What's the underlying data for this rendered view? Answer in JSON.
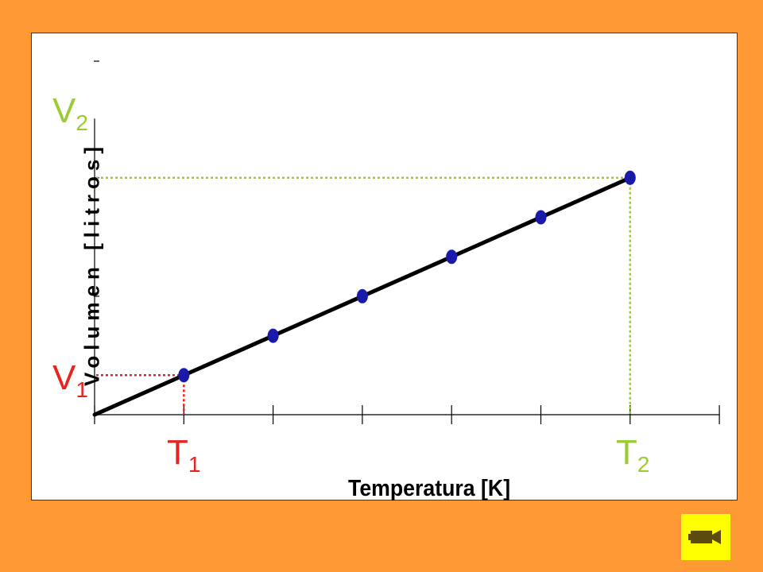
{
  "chart_data": {
    "type": "scatter",
    "xlabel": "Temperatura [K]",
    "ylabel": "Volumen [litros]",
    "x": [
      1,
      2,
      3,
      4,
      5,
      6
    ],
    "y": [
      1,
      2,
      3,
      4,
      5,
      6
    ],
    "xlim": [
      0,
      7
    ],
    "ylim": [
      0,
      7.5
    ],
    "fit_line": true,
    "grid": false,
    "annotations": {
      "V1": {
        "base": "V",
        "sub": "1",
        "color": "#E8231E",
        "value_y": 1,
        "guide_x": 1
      },
      "V2": {
        "base": "V",
        "sub": "2",
        "color": "#99CC33",
        "value_y": 6,
        "guide_x": 6
      },
      "T1": {
        "base": "T",
        "sub": "1",
        "color": "#E8231E",
        "value_x": 1
      },
      "T2": {
        "base": "T",
        "sub": "2",
        "color": "#99CC33",
        "value_x": 6
      }
    },
    "colors": {
      "background": "#FF9933",
      "panel": "#FFFFFF",
      "line": "#000000",
      "marker": "#1A1AAA"
    }
  },
  "controls": {
    "video_icon": "video-camera-icon",
    "video_button_color": "#FFFF00"
  }
}
